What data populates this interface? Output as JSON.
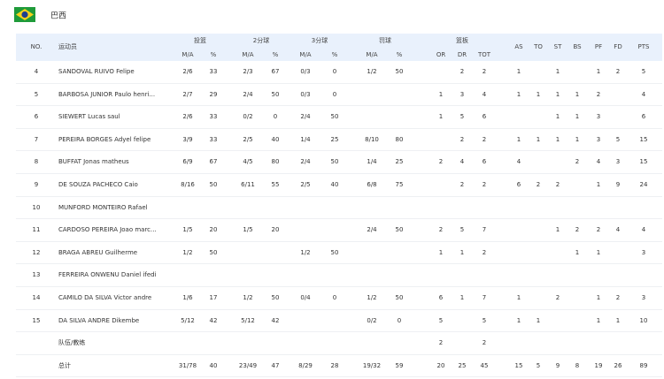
{
  "header": {
    "country": "巴西"
  },
  "table": {
    "group_headers": [
      "NO.",
      "运动员",
      "投篮",
      "2分球",
      "3分球",
      "罚球",
      "篮板",
      "AS",
      "TO",
      "ST",
      "BS",
      "PF",
      "FD",
      "PTS"
    ],
    "sub_headers": [
      "M/A",
      "%",
      "M/A",
      "%",
      "M/A",
      "%",
      "M/A",
      "%",
      "OR",
      "DR",
      "TOT"
    ],
    "rows": [
      [
        4,
        "SANDOVAL RUIVO Felipe",
        "2/6",
        33,
        "2/3",
        67,
        "0/3",
        0,
        "1/2",
        50,
        null,
        2,
        2,
        1,
        null,
        1,
        null,
        1,
        2,
        5
      ],
      [
        5,
        "BARBOSA JUNIOR Paulo henri...",
        "2/7",
        29,
        "2/4",
        50,
        "0/3",
        0,
        null,
        null,
        1,
        3,
        4,
        1,
        1,
        1,
        1,
        2,
        null,
        4
      ],
      [
        6,
        "SIEWERT Lucas saul",
        "2/6",
        33,
        "0/2",
        0,
        "2/4",
        50,
        null,
        null,
        1,
        5,
        6,
        null,
        null,
        1,
        1,
        3,
        null,
        6
      ],
      [
        7,
        "PEREIRA BORGES Adyel felipe",
        "3/9",
        33,
        "2/5",
        40,
        "1/4",
        25,
        "8/10",
        80,
        null,
        2,
        2,
        1,
        1,
        1,
        1,
        3,
        5,
        15
      ],
      [
        8,
        "BUFFAT Jonas matheus",
        "6/9",
        67,
        "4/5",
        80,
        "2/4",
        50,
        "1/4",
        25,
        2,
        4,
        6,
        4,
        null,
        null,
        2,
        4,
        3,
        15
      ],
      [
        9,
        "DE SOUZA PACHECO Caio",
        "8/16",
        50,
        "6/11",
        55,
        "2/5",
        40,
        "6/8",
        75,
        null,
        2,
        2,
        6,
        2,
        2,
        null,
        1,
        9,
        24
      ],
      [
        10,
        "MUNFORD MONTEIRO Rafael",
        null,
        null,
        null,
        null,
        null,
        null,
        null,
        null,
        null,
        null,
        null,
        null,
        null,
        null,
        null,
        null,
        null,
        null
      ],
      [
        11,
        "CARDOSO PEREIRA Joao marc...",
        "1/5",
        20,
        "1/5",
        20,
        null,
        null,
        "2/4",
        50,
        2,
        5,
        7,
        null,
        null,
        1,
        2,
        2,
        4,
        4
      ],
      [
        12,
        "BRAGA ABREU Guilherme",
        "1/2",
        50,
        null,
        null,
        "1/2",
        50,
        null,
        null,
        1,
        1,
        2,
        null,
        null,
        null,
        1,
        1,
        null,
        3
      ],
      [
        13,
        "FERREIRA ONWENU Daniel ifedi",
        null,
        null,
        null,
        null,
        null,
        null,
        null,
        null,
        null,
        null,
        null,
        null,
        null,
        null,
        null,
        null,
        null,
        null
      ],
      [
        14,
        "CAMILO DA SILVA Victor andre",
        "1/6",
        17,
        "1/2",
        50,
        "0/4",
        0,
        "1/2",
        50,
        6,
        1,
        7,
        1,
        null,
        2,
        null,
        1,
        2,
        3
      ],
      [
        15,
        "DA SILVA ANDRE Dikembe",
        "5/12",
        42,
        "5/12",
        42,
        null,
        null,
        "0/2",
        0,
        5,
        null,
        5,
        1,
        1,
        null,
        null,
        1,
        1,
        10
      ],
      [
        null,
        "队伍/教练",
        null,
        null,
        null,
        null,
        null,
        null,
        null,
        null,
        2,
        null,
        2,
        null,
        null,
        null,
        null,
        null,
        null,
        null
      ],
      [
        null,
        "总计",
        "31/78",
        40,
        "23/49",
        47,
        "8/29",
        28,
        "19/32",
        59,
        20,
        25,
        45,
        15,
        5,
        9,
        8,
        19,
        26,
        89
      ]
    ]
  }
}
